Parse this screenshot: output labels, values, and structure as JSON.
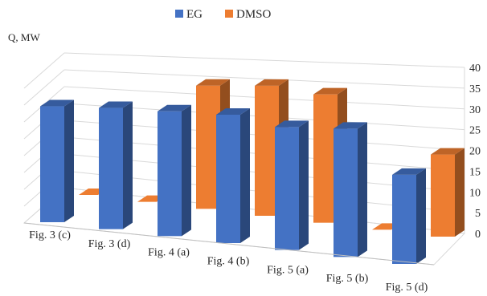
{
  "chart_data": {
    "type": "bar",
    "ylabel": "Q, MW",
    "ylim": [
      0,
      40
    ],
    "yticks": [
      0,
      5,
      10,
      15,
      20,
      25,
      30,
      35,
      40
    ],
    "grid": true,
    "legend_position": "top",
    "categories": [
      "Fig. 3 (c)",
      "Fig. 3 (d)",
      "Fig. 4 (a)",
      "Fig. 4 (b)",
      "Fig. 5 (a)",
      "Fig. 5 (b)",
      "Fig.  5 (d)"
    ],
    "series": [
      {
        "name": "EG",
        "color": "#4472C4",
        "values": [
          32.5,
          34,
          35,
          36,
          34.5,
          36,
          25
        ]
      },
      {
        "name": "DMSO",
        "color": "#ED7D31",
        "values": [
          0,
          0,
          36,
          38,
          37.5,
          0,
          24
        ]
      }
    ]
  }
}
